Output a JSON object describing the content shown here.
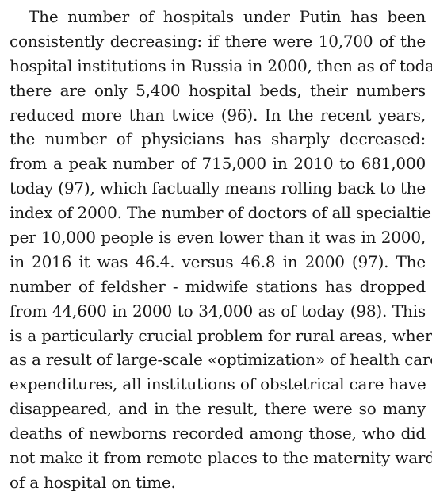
{
  "paragraph": {
    "lines": [
      "The number of hospitals under Putin has been",
      "consistently decreasing: if there were 10,700 of the",
      "hospital institutions in Russia in 2000, then as of today",
      "there are only 5,400 hospital beds, their numbers",
      "reduced more than twice (96). In the recent years,",
      "the number of physicians has sharply decreased:",
      "from a peak number of 715,000 in 2010 to 681,000",
      "today (97), which factually means rolling back to the",
      "index of 2000. The number of doctors of all specialties",
      "per 10,000 people is even lower than it was in 2000,",
      "in 2016 it was 46.4. versus 46.8 in 2000 (97). The",
      "number of feldsher - midwife stations has dropped",
      "from 44,600 in 2000 to 34,000 as of today (98). This",
      "is a particularly crucial problem for rural areas, where",
      "as a result of large-scale «optimization» of health care",
      "expenditures, all institutions of obstetrical care have",
      "disappeared, and in the result, there were so many",
      "deaths of newborns recorded among those, who did",
      "not make it from remote places to the maternity ward",
      "of a hospital on time."
    ]
  }
}
